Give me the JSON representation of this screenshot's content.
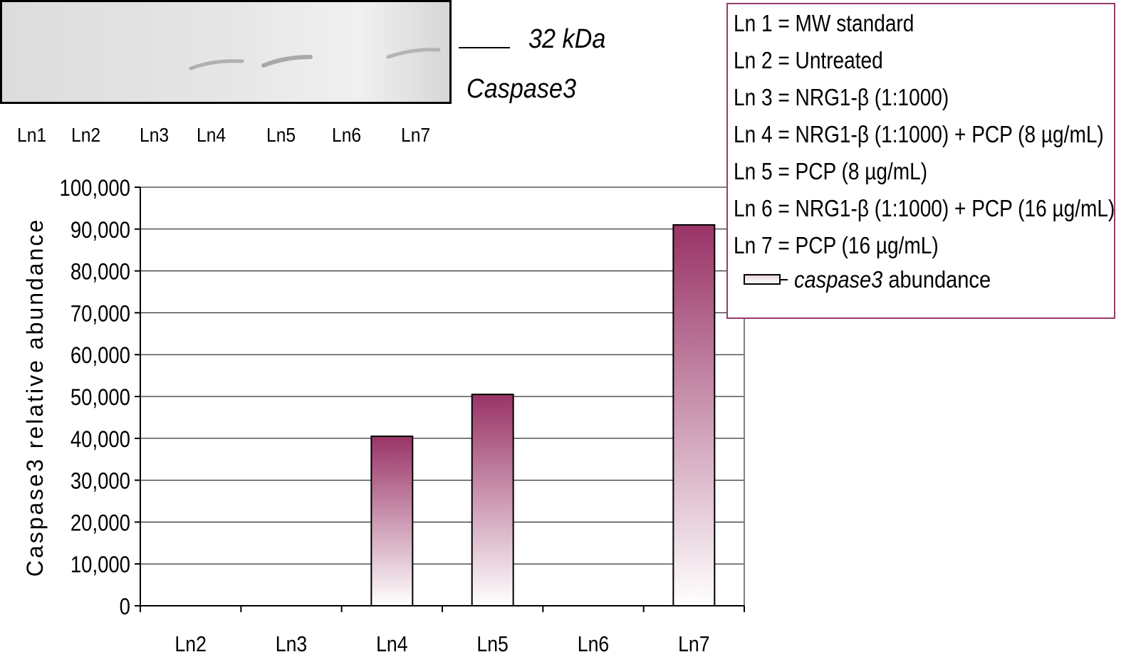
{
  "blot": {
    "marker_label": "32 kDa",
    "protein_label": "Caspase3",
    "lane_labels": [
      "Ln1",
      "Ln2",
      "Ln3",
      "Ln4",
      "Ln5",
      "Ln6",
      "Ln7"
    ]
  },
  "legend": {
    "entries": [
      "Ln 1 = MW standard",
      "Ln 2 = Untreated",
      "Ln 3 = NRG1-β (1:1000)",
      "Ln 4 = NRG1-β (1:1000) + PCP (8 µg/mL)",
      "Ln 5 = PCP (8 µg/mL)",
      "Ln 6 = NRG1-β (1:1000) + PCP (16 µg/mL)",
      "Ln 7 = PCP (16 µg/mL)"
    ],
    "series_key_italic": "caspase3",
    "series_key_rest": " abundance",
    "border_color": "#9a3a6a"
  },
  "chart_data": {
    "type": "bar",
    "categories": [
      "Ln2",
      "Ln3",
      "Ln4",
      "Ln5",
      "Ln6",
      "Ln7"
    ],
    "series": [
      {
        "name": "caspase3 abundance",
        "values": [
          0,
          0,
          40500,
          50500,
          0,
          91000
        ]
      }
    ],
    "ylabel": "Caspase3 relative abundance",
    "ylim": [
      0,
      100000
    ],
    "yticks": [
      "0",
      "10,000",
      "20,000",
      "30,000",
      "40,000",
      "50,000",
      "60,000",
      "70,000",
      "80,000",
      "90,000",
      "100,000"
    ],
    "grid": true,
    "bar_color_top": "#993366",
    "bar_color_bottom": "#ffffff"
  }
}
